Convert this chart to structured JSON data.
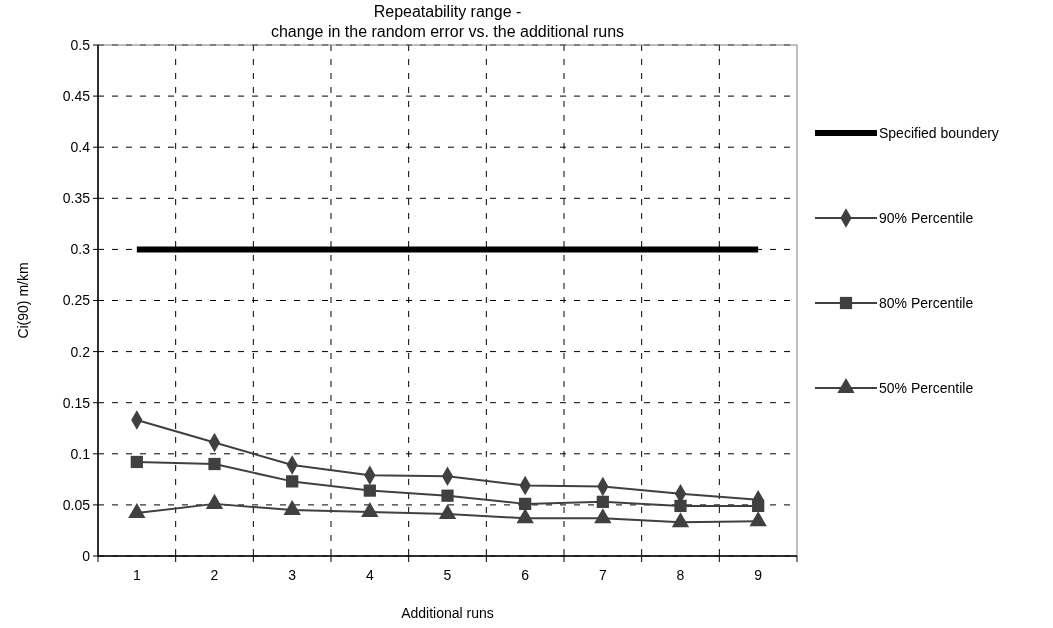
{
  "chart_data": {
    "type": "line",
    "title": "Repeatability range -\nchange in the random error vs. the additional runs",
    "xlabel": "Additional runs",
    "ylabel": "Ci(90) m/km",
    "categories": [
      "1",
      "2",
      "3",
      "4",
      "5",
      "6",
      "7",
      "8",
      "9"
    ],
    "series": [
      {
        "name": "Specified boundery",
        "color": "#000000",
        "marker": "none",
        "values": [
          0.3,
          0.3,
          0.3,
          0.3,
          0.3,
          0.3,
          0.3,
          0.3,
          0.3
        ]
      },
      {
        "name": "90% Percentile",
        "color": "#404040",
        "marker": "diamond",
        "values": [
          0.133,
          0.111,
          0.089,
          0.079,
          0.078,
          0.069,
          0.068,
          0.061,
          0.055
        ]
      },
      {
        "name": "80% Percentile",
        "color": "#404040",
        "marker": "square",
        "values": [
          0.092,
          0.09,
          0.073,
          0.064,
          0.059,
          0.051,
          0.053,
          0.049,
          0.049
        ]
      },
      {
        "name": "50% Percentile",
        "color": "#404040",
        "marker": "triangle",
        "values": [
          0.042,
          0.051,
          0.045,
          0.043,
          0.041,
          0.037,
          0.037,
          0.033,
          0.034
        ]
      }
    ],
    "ylim": [
      0,
      0.5
    ],
    "yticks": [
      0,
      0.05,
      0.1,
      0.15,
      0.2,
      0.25,
      0.3,
      0.35,
      0.4,
      0.45,
      0.5
    ],
    "grid": true,
    "legend": "right"
  }
}
